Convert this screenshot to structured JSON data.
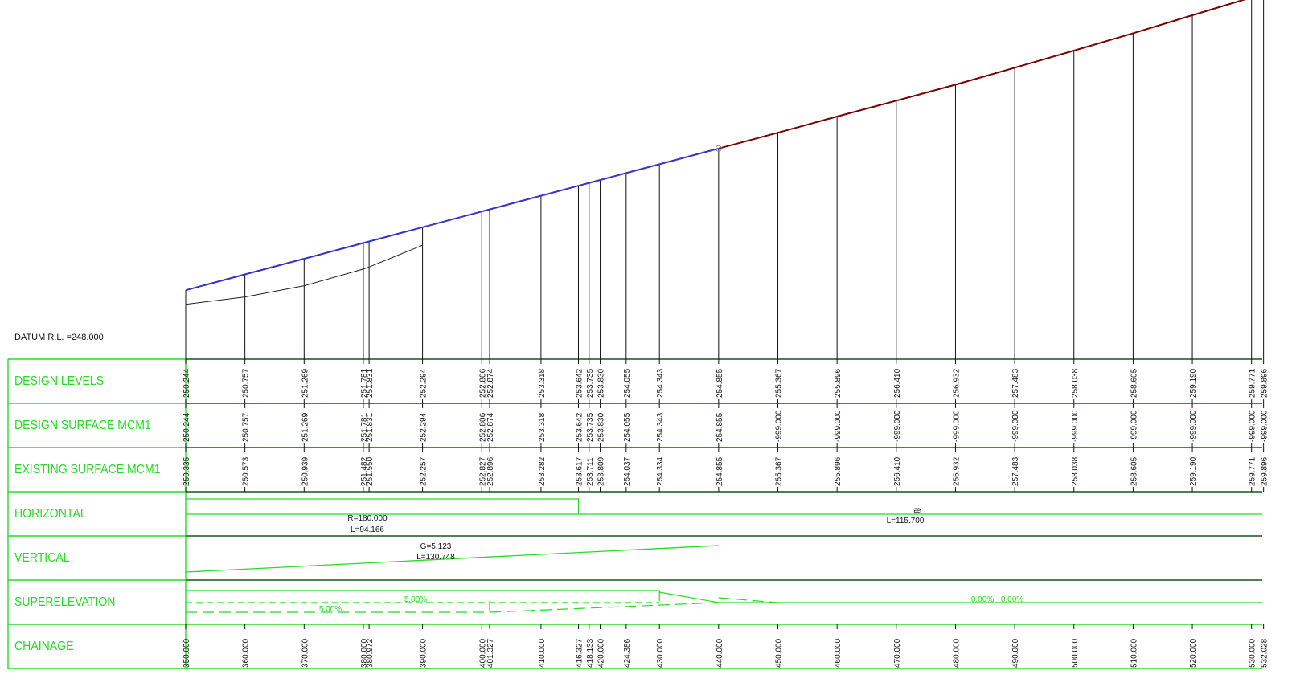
{
  "datum_label": "DATUM R.L. =248.000",
  "rows": [
    {
      "id": "design_levels",
      "label": "DESIGN LEVELS"
    },
    {
      "id": "design_surface",
      "label": "DESIGN SURFACE MCM1"
    },
    {
      "id": "existing_surface",
      "label": "EXISTING SURFACE MCM1"
    },
    {
      "id": "horizontal",
      "label": "HORIZONTAL"
    },
    {
      "id": "vertical",
      "label": "VERTICAL"
    },
    {
      "id": "superelevation",
      "label": "SUPERELEVATION"
    },
    {
      "id": "chainage",
      "label": "CHAINAGE"
    }
  ],
  "chart_data": {
    "type": "line",
    "datum": 248.0,
    "chainage": [
      "350.000",
      "360.000",
      "370.000",
      "380.000",
      "380.972",
      "390.000",
      "400.000",
      "401.327",
      "410.000",
      "416.327",
      "418.133",
      "420.000",
      "424.386",
      "430.000",
      "440.000",
      "450.000",
      "460.000",
      "470.000",
      "480.000",
      "490.000",
      "500.000",
      "510.000",
      "520.000",
      "530.000",
      "532.028"
    ],
    "design_levels": [
      "250.244",
      "250.757",
      "251.269",
      "251.781",
      "251.831",
      "252.294",
      "252.806",
      "252.874",
      "253.318",
      "253.642",
      "253.735",
      "253.830",
      "254.055",
      "254.343",
      "254.855",
      "255.367",
      "255.896",
      "256.410",
      "256.932",
      "257.483",
      "258.038",
      "258.605",
      "259.190",
      "259.771",
      "259.896"
    ],
    "design_surface": [
      "250.244",
      "250.757",
      "251.269",
      "251.781",
      "251.831",
      "252.294",
      "252.806",
      "252.874",
      "253.318",
      "253.642",
      "253.735",
      "253.830",
      "254.055",
      "254.343",
      "254.855",
      "-999.000",
      "-999.000",
      "-999.000",
      "-999.000",
      "-999.000",
      "-999.000",
      "-999.000",
      "-999.000",
      "-999.000",
      "-999.000"
    ],
    "existing_surface": [
      "250.335",
      "250.573",
      "250.939",
      "251.482",
      "251.550",
      "252.257",
      "252.827",
      "252.896",
      "253.282",
      "253.617",
      "253.711",
      "253.809",
      "254.037",
      "254.334",
      "254.855",
      "255.367",
      "255.896",
      "256.410",
      "256.932",
      "257.483",
      "258.038",
      "258.605",
      "259.190",
      "259.771",
      "259.896"
    ],
    "horizontal": {
      "curve": {
        "r_label": "R=180.000",
        "l_label": "L=94.166"
      },
      "straight": {
        "symbol": "æ",
        "l_label": "L=115.700"
      }
    },
    "vertical": {
      "g_label": "G=5.123",
      "l_label": "L=130.748"
    },
    "superelevation": {
      "left_label": "5.00%",
      "right_label": "5.00%",
      "end_left": "0.00%",
      "end_right": "0.00%"
    },
    "colors": {
      "grid": "#22dd22",
      "design_line": "#3333cc",
      "future_line": "#7a0000",
      "existing_line": "#222222"
    }
  }
}
